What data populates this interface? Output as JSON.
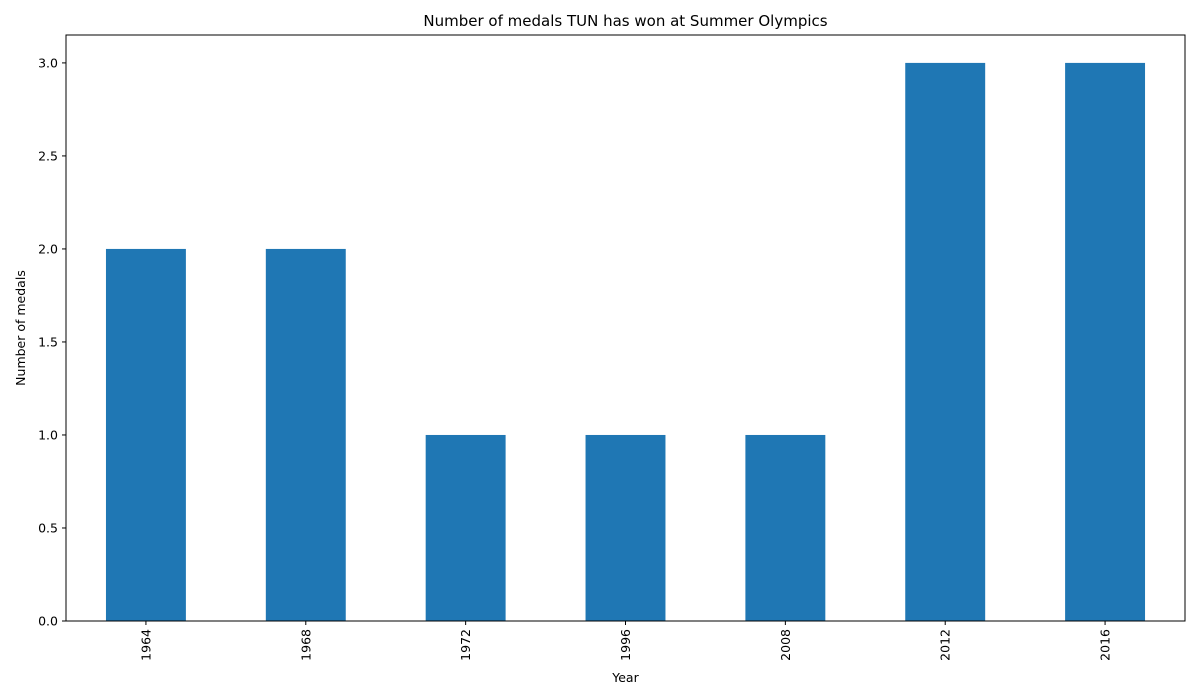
{
  "chart_data": {
    "type": "bar",
    "title": "Number of medals TUN has won at Summer Olympics",
    "xlabel": "Year",
    "ylabel": "Number of medals",
    "categories": [
      "1964",
      "1968",
      "1972",
      "1996",
      "2008",
      "2012",
      "2016"
    ],
    "values": [
      2,
      2,
      1,
      1,
      1,
      3,
      3
    ],
    "ylim": [
      0,
      3.15
    ],
    "yticks": [
      0.0,
      0.5,
      1.0,
      1.5,
      2.0,
      2.5,
      3.0
    ],
    "ytick_labels": [
      "0.0",
      "0.5",
      "1.0",
      "1.5",
      "2.0",
      "2.5",
      "3.0"
    ],
    "xtick_rotation": "vertical",
    "grid": false,
    "legend": "none",
    "bar_color": "#1f77b4"
  }
}
